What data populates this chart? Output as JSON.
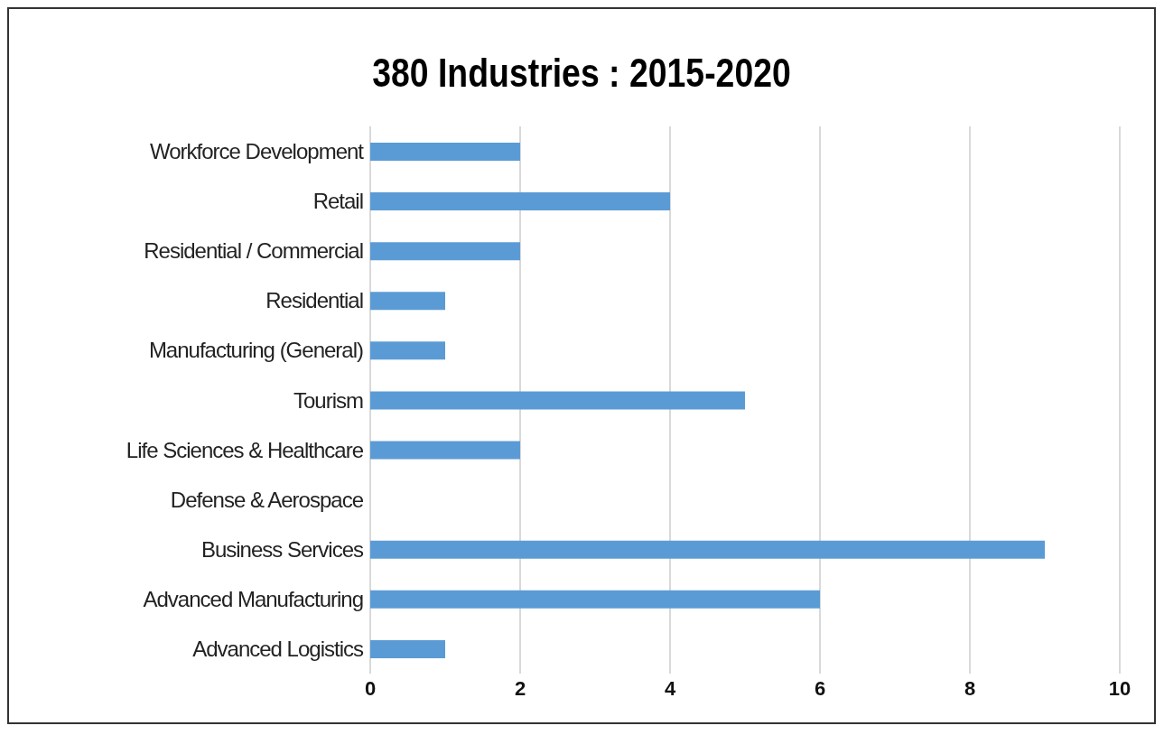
{
  "chart_data": {
    "type": "bar",
    "orientation": "horizontal",
    "title": "380 Industries : 2015-2020",
    "categories": [
      "Workforce Development",
      "Retail",
      "Residential / Commercial",
      "Residential",
      "Manufacturing (General)",
      "Tourism",
      "Life Sciences & Healthcare",
      "Defense & Aerospace",
      "Business Services",
      "Advanced Manufacturing",
      "Advanced Logistics"
    ],
    "values": [
      2,
      4,
      2,
      1,
      1,
      5,
      2,
      0,
      9,
      6,
      1
    ],
    "color": "#5b9bd5",
    "xlim": [
      0,
      10
    ],
    "xticks": [
      0,
      2,
      4,
      6,
      8,
      10
    ],
    "grid": "x"
  }
}
